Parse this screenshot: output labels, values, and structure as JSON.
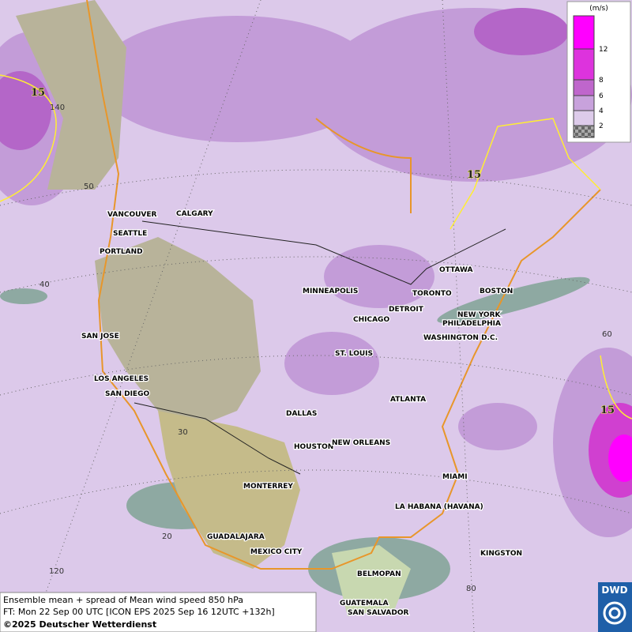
{
  "legend": {
    "unit": "(m/s)",
    "levels": [
      "12",
      "8",
      "6",
      "4",
      "2"
    ]
  },
  "cities": [
    "VANCOUVER",
    "CALGARY",
    "SEATTLE",
    "PORTLAND",
    "MINNEAPOLIS",
    "OTTAWA",
    "TORONTO",
    "BOSTON",
    "DETROIT",
    "CHICAGO",
    "NEW YORK",
    "PHILADELPHIA",
    "WASHINGTON D.C.",
    "SAN JOSE",
    "ST. LOUIS",
    "LOS ANGELES",
    "SAN DIEGO",
    "ATLANTA",
    "DALLAS",
    "HOUSTON",
    "NEW ORLEANS",
    "MIAMI",
    "MONTERREY",
    "LA HABANA (HAVANA)",
    "GUADALAJARA",
    "MEXICO CITY",
    "KINGSTON",
    "BELMOPAN",
    "GUATEMALA",
    "SAN SALVADOR"
  ],
  "graticule_labels": [
    "140",
    "50",
    "40",
    "60",
    "30",
    "20",
    "120",
    "80"
  ],
  "contour_labels": [
    "15",
    "15",
    "15"
  ],
  "footer": {
    "line1": "Ensemble mean + spread of Mean wind speed 850 hPa",
    "line2": "FT: Mon 22 Sep 00 UTC [ICON EPS 2025 Sep 16 12UTC +132h]",
    "line3": "©2025 Deutscher Wetterdienst"
  },
  "logo": "DWD"
}
